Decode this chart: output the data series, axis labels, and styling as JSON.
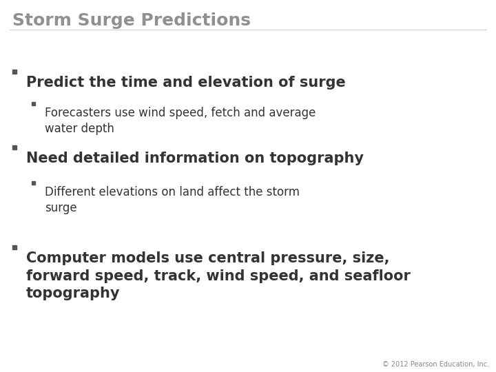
{
  "title": "Storm Surge Predictions",
  "title_color": "#909090",
  "title_fontsize": 18,
  "title_fontweight": "bold",
  "slide_bg": "#ffffff",
  "bullet_color": "#555555",
  "text_color": "#333333",
  "copyright": "© 2012 Pearson Education, Inc.",
  "copyright_fontsize": 7,
  "copyright_color": "#888888",
  "bullet_configs": [
    [
      430,
      1,
      "Predict the time and elevation of surge",
      15,
      "bold"
    ],
    [
      385,
      2,
      "Forecasters use wind speed, fetch and average\nwater depth",
      12,
      "normal"
    ],
    [
      320,
      1,
      "Need detailed information on topography",
      15,
      "bold"
    ],
    [
      270,
      2,
      "Different elevations on land affect the storm\nsurge",
      12,
      "normal"
    ],
    [
      175,
      1,
      "Computer models use central pressure, size,\nforward speed, track, wind speed, and seafloor\ntopography",
      15,
      "bold"
    ]
  ]
}
